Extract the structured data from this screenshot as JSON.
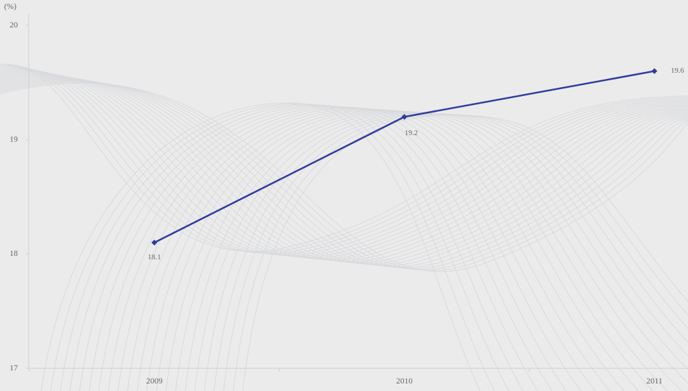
{
  "chart_data": {
    "type": "line",
    "y_label": "(%)",
    "categories": [
      "2009",
      "2010",
      "2011"
    ],
    "series": [
      {
        "name": null,
        "color": "#2f3c9e",
        "values": [
          18.1,
          19.2,
          19.6
        ]
      }
    ],
    "ylim": [
      17,
      20
    ],
    "yticks": [
      17,
      18,
      19,
      20
    ],
    "grid": false
  }
}
